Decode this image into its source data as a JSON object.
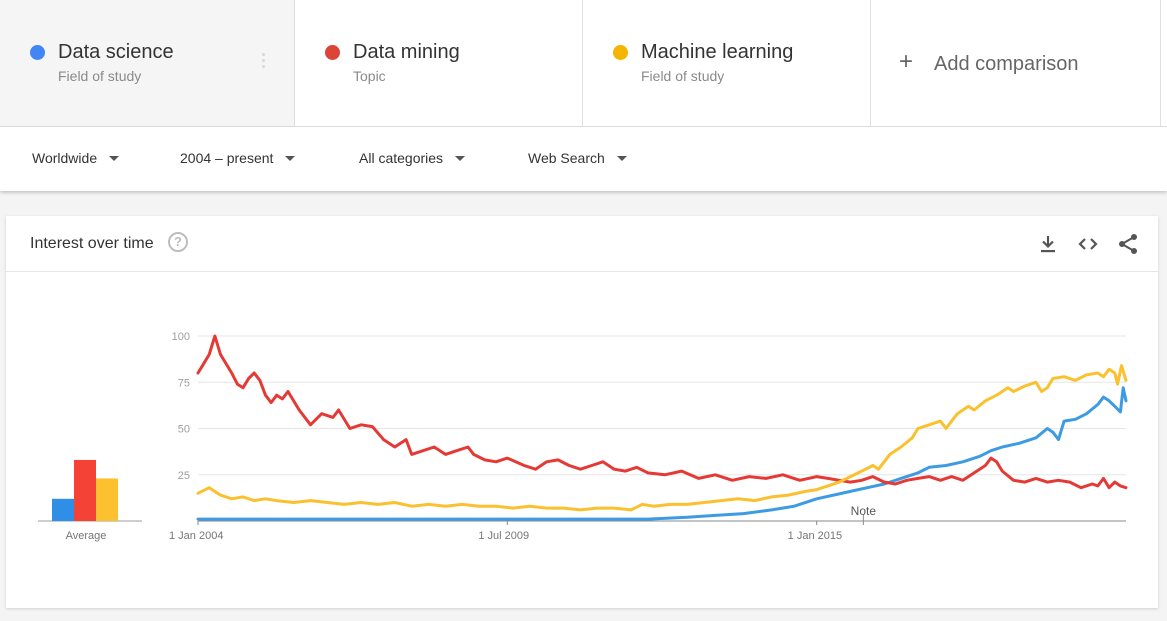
{
  "terms": [
    {
      "name": "Data science",
      "type": "Field of study",
      "color": "#4285f4"
    },
    {
      "name": "Data mining",
      "type": "Topic",
      "color": "#db4437"
    },
    {
      "name": "Machine learning",
      "type": "Field of study",
      "color": "#f4b400"
    }
  ],
  "add_comparison": {
    "icon": "plus-icon",
    "label": "Add comparison"
  },
  "filters": [
    {
      "label": "Worldwide"
    },
    {
      "label": "2004 – present"
    },
    {
      "label": "All categories"
    },
    {
      "label": "Web Search"
    }
  ],
  "card": {
    "title": "Interest over time",
    "help_glyph": "?",
    "tools": [
      "download-icon",
      "embed-icon",
      "share-icon"
    ]
  },
  "chart_data": {
    "type": "line",
    "title": "Interest over time",
    "y_ticks": [
      25,
      50,
      75,
      100
    ],
    "ylim": [
      0,
      100
    ],
    "x_ticks": [
      {
        "label": "1 Jan 2004",
        "year": 2004.0
      },
      {
        "label": "1 Jul 2009",
        "year": 2009.5
      },
      {
        "label": "1 Jan 2015",
        "year": 2015.0
      }
    ],
    "xlim": [
      2004.0,
      2020.5
    ],
    "grid": true,
    "note_label": "Note",
    "note_year": 2015.83,
    "average_label": "Average",
    "averages": [
      {
        "name": "Data science",
        "value": 12,
        "color": "#2f8fe6"
      },
      {
        "name": "Data mining",
        "value": 33,
        "color": "#f44336"
      },
      {
        "name": "Machine learning",
        "value": 23,
        "color": "#fdc02f"
      }
    ],
    "series": [
      {
        "name": "Data science",
        "color": "#3c9be3",
        "points": [
          [
            2004.0,
            1
          ],
          [
            2005.0,
            1
          ],
          [
            2006.0,
            1
          ],
          [
            2007.0,
            1
          ],
          [
            2008.0,
            1
          ],
          [
            2009.0,
            1
          ],
          [
            2010.0,
            1
          ],
          [
            2011.0,
            1
          ],
          [
            2012.0,
            1
          ],
          [
            2012.7,
            2
          ],
          [
            2013.2,
            3
          ],
          [
            2013.7,
            4
          ],
          [
            2014.2,
            6
          ],
          [
            2014.6,
            8
          ],
          [
            2015.0,
            12
          ],
          [
            2015.3,
            14
          ],
          [
            2015.6,
            16
          ],
          [
            2015.9,
            18
          ],
          [
            2016.2,
            20
          ],
          [
            2016.5,
            23
          ],
          [
            2016.8,
            26
          ],
          [
            2017.0,
            29
          ],
          [
            2017.3,
            30
          ],
          [
            2017.6,
            32
          ],
          [
            2017.9,
            35
          ],
          [
            2018.1,
            38
          ],
          [
            2018.3,
            40
          ],
          [
            2018.6,
            42
          ],
          [
            2018.9,
            45
          ],
          [
            2019.1,
            50
          ],
          [
            2019.2,
            48
          ],
          [
            2019.3,
            44
          ],
          [
            2019.4,
            54
          ],
          [
            2019.6,
            55
          ],
          [
            2019.8,
            58
          ],
          [
            2020.0,
            63
          ],
          [
            2020.1,
            67
          ],
          [
            2020.2,
            65
          ],
          [
            2020.3,
            62
          ],
          [
            2020.4,
            59
          ],
          [
            2020.45,
            72
          ],
          [
            2020.5,
            65
          ]
        ]
      },
      {
        "name": "Data mining",
        "color": "#e53935",
        "points": [
          [
            2004.0,
            80
          ],
          [
            2004.1,
            85
          ],
          [
            2004.2,
            90
          ],
          [
            2004.3,
            100
          ],
          [
            2004.4,
            90
          ],
          [
            2004.6,
            80
          ],
          [
            2004.7,
            74
          ],
          [
            2004.8,
            72
          ],
          [
            2004.9,
            77
          ],
          [
            2005.0,
            80
          ],
          [
            2005.1,
            76
          ],
          [
            2005.2,
            68
          ],
          [
            2005.3,
            64
          ],
          [
            2005.4,
            68
          ],
          [
            2005.5,
            66
          ],
          [
            2005.6,
            70
          ],
          [
            2005.8,
            60
          ],
          [
            2006.0,
            52
          ],
          [
            2006.2,
            58
          ],
          [
            2006.4,
            56
          ],
          [
            2006.5,
            60
          ],
          [
            2006.7,
            50
          ],
          [
            2006.9,
            52
          ],
          [
            2007.1,
            51
          ],
          [
            2007.3,
            44
          ],
          [
            2007.5,
            40
          ],
          [
            2007.7,
            44
          ],
          [
            2007.8,
            36
          ],
          [
            2008.0,
            38
          ],
          [
            2008.2,
            40
          ],
          [
            2008.4,
            36
          ],
          [
            2008.6,
            38
          ],
          [
            2008.8,
            40
          ],
          [
            2008.9,
            36
          ],
          [
            2009.1,
            33
          ],
          [
            2009.3,
            32
          ],
          [
            2009.5,
            34
          ],
          [
            2009.8,
            30
          ],
          [
            2010.0,
            28
          ],
          [
            2010.2,
            32
          ],
          [
            2010.4,
            33
          ],
          [
            2010.6,
            30
          ],
          [
            2010.8,
            28
          ],
          [
            2011.0,
            30
          ],
          [
            2011.2,
            32
          ],
          [
            2011.4,
            28
          ],
          [
            2011.6,
            27
          ],
          [
            2011.8,
            29
          ],
          [
            2012.0,
            26
          ],
          [
            2012.3,
            25
          ],
          [
            2012.6,
            27
          ],
          [
            2012.9,
            23
          ],
          [
            2013.2,
            25
          ],
          [
            2013.5,
            22
          ],
          [
            2013.8,
            24
          ],
          [
            2014.1,
            23
          ],
          [
            2014.4,
            25
          ],
          [
            2014.7,
            22
          ],
          [
            2015.0,
            24
          ],
          [
            2015.2,
            23
          ],
          [
            2015.4,
            22
          ],
          [
            2015.6,
            21
          ],
          [
            2015.8,
            22
          ],
          [
            2016.0,
            24
          ],
          [
            2016.2,
            21
          ],
          [
            2016.4,
            20
          ],
          [
            2016.6,
            22
          ],
          [
            2016.8,
            23
          ],
          [
            2017.0,
            24
          ],
          [
            2017.2,
            22
          ],
          [
            2017.4,
            24
          ],
          [
            2017.6,
            22
          ],
          [
            2017.8,
            26
          ],
          [
            2018.0,
            30
          ],
          [
            2018.1,
            34
          ],
          [
            2018.2,
            32
          ],
          [
            2018.3,
            27
          ],
          [
            2018.5,
            22
          ],
          [
            2018.7,
            21
          ],
          [
            2018.9,
            23
          ],
          [
            2019.1,
            21
          ],
          [
            2019.3,
            22
          ],
          [
            2019.5,
            21
          ],
          [
            2019.7,
            18
          ],
          [
            2019.9,
            20
          ],
          [
            2020.0,
            19
          ],
          [
            2020.1,
            23
          ],
          [
            2020.2,
            18
          ],
          [
            2020.3,
            21
          ],
          [
            2020.4,
            19
          ],
          [
            2020.5,
            18
          ]
        ]
      },
      {
        "name": "Machine learning",
        "color": "#fbc02d",
        "points": [
          [
            2004.0,
            15
          ],
          [
            2004.2,
            18
          ],
          [
            2004.4,
            14
          ],
          [
            2004.6,
            12
          ],
          [
            2004.8,
            13
          ],
          [
            2005.0,
            11
          ],
          [
            2005.2,
            12
          ],
          [
            2005.4,
            11
          ],
          [
            2005.7,
            10
          ],
          [
            2006.0,
            11
          ],
          [
            2006.3,
            10
          ],
          [
            2006.6,
            9
          ],
          [
            2006.9,
            10
          ],
          [
            2007.2,
            9
          ],
          [
            2007.5,
            10
          ],
          [
            2007.8,
            8
          ],
          [
            2008.1,
            9
          ],
          [
            2008.4,
            8
          ],
          [
            2008.7,
            9
          ],
          [
            2009.0,
            8
          ],
          [
            2009.3,
            8
          ],
          [
            2009.6,
            7
          ],
          [
            2009.9,
            8
          ],
          [
            2010.2,
            7
          ],
          [
            2010.5,
            7
          ],
          [
            2010.8,
            6
          ],
          [
            2011.1,
            7
          ],
          [
            2011.4,
            7
          ],
          [
            2011.7,
            6
          ],
          [
            2011.9,
            9
          ],
          [
            2012.1,
            8
          ],
          [
            2012.4,
            9
          ],
          [
            2012.7,
            9
          ],
          [
            2013.0,
            10
          ],
          [
            2013.3,
            11
          ],
          [
            2013.6,
            12
          ],
          [
            2013.9,
            11
          ],
          [
            2014.2,
            13
          ],
          [
            2014.5,
            14
          ],
          [
            2014.8,
            16
          ],
          [
            2015.0,
            17
          ],
          [
            2015.2,
            19
          ],
          [
            2015.4,
            21
          ],
          [
            2015.6,
            24
          ],
          [
            2015.8,
            27
          ],
          [
            2016.0,
            30
          ],
          [
            2016.1,
            28
          ],
          [
            2016.2,
            32
          ],
          [
            2016.3,
            36
          ],
          [
            2016.5,
            40
          ],
          [
            2016.7,
            45
          ],
          [
            2016.8,
            50
          ],
          [
            2017.0,
            52
          ],
          [
            2017.2,
            54
          ],
          [
            2017.3,
            50
          ],
          [
            2017.5,
            58
          ],
          [
            2017.7,
            62
          ],
          [
            2017.8,
            60
          ],
          [
            2018.0,
            65
          ],
          [
            2018.2,
            68
          ],
          [
            2018.4,
            72
          ],
          [
            2018.5,
            70
          ],
          [
            2018.7,
            73
          ],
          [
            2018.9,
            75
          ],
          [
            2019.0,
            70
          ],
          [
            2019.1,
            72
          ],
          [
            2019.2,
            77
          ],
          [
            2019.4,
            78
          ],
          [
            2019.6,
            76
          ],
          [
            2019.8,
            79
          ],
          [
            2020.0,
            80
          ],
          [
            2020.1,
            78
          ],
          [
            2020.2,
            82
          ],
          [
            2020.3,
            80
          ],
          [
            2020.35,
            74
          ],
          [
            2020.42,
            84
          ],
          [
            2020.5,
            76
          ]
        ]
      }
    ]
  }
}
